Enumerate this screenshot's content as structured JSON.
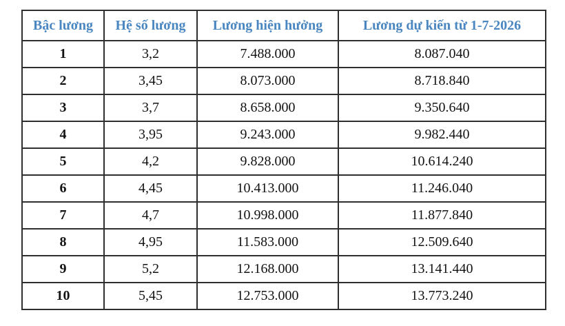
{
  "colors": {
    "header_text": "#4a86c0",
    "border": "#2e2e2e",
    "body_text": "#121212",
    "background": "#ffffff"
  },
  "table": {
    "headers": [
      "Bậc lương",
      "Hệ số lương",
      "Lương hiện hưởng",
      "Lương dự kiến từ 1-7-2026"
    ],
    "rows": [
      [
        "1",
        "3,2",
        "7.488.000",
        "8.087.040"
      ],
      [
        "2",
        "3,45",
        "8.073.000",
        "8.718.840"
      ],
      [
        "3",
        "3,7",
        "8.658.000",
        "9.350.640"
      ],
      [
        "4",
        "3,95",
        "9.243.000",
        "9.982.440"
      ],
      [
        "5",
        "4,2",
        "9.828.000",
        "10.614.240"
      ],
      [
        "6",
        "4,45",
        "10.413.000",
        "11.246.040"
      ],
      [
        "7",
        "4,7",
        "10.998.000",
        "11.877.840"
      ],
      [
        "8",
        "4,95",
        "11.583.000",
        "12.509.640"
      ],
      [
        "9",
        "5,2",
        "12.168.000",
        "13.141.440"
      ],
      [
        "10",
        "5,45",
        "12.753.000",
        "13.773.240"
      ]
    ]
  }
}
